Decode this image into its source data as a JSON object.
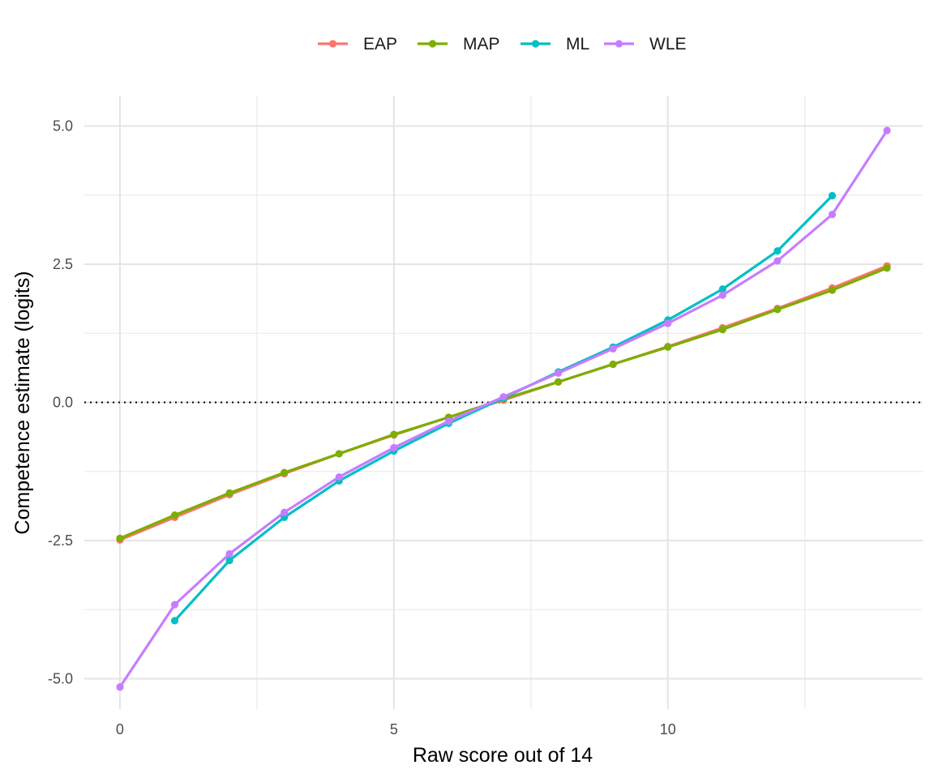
{
  "chart_data": {
    "type": "line",
    "title": "",
    "xlabel": "Raw score out of 14",
    "ylabel": "Competence estimate (logits)",
    "xlim": [
      -0.65,
      14.65
    ],
    "ylim": [
      -5.55,
      5.55
    ],
    "xticks": [
      0,
      5,
      10
    ],
    "xtick_labels": [
      "0",
      "5",
      "10"
    ],
    "yticks": [
      -5,
      -2.5,
      0,
      2.5,
      5
    ],
    "ytick_labels": [
      "-5.0",
      "-2.5",
      "0.0",
      "2.5",
      "5.0"
    ],
    "grid": true,
    "legend_position": "top",
    "reference_line": {
      "y": 0,
      "style": "dotted"
    },
    "series": [
      {
        "name": "EAP",
        "color": "#F8766D",
        "x": [
          0,
          1,
          2,
          3,
          4,
          5,
          6,
          7,
          8,
          9,
          10,
          11,
          12,
          13,
          14
        ],
        "y": [
          -2.49,
          -2.08,
          -1.67,
          -1.29,
          -0.93,
          -0.59,
          -0.27,
          0.04,
          0.37,
          0.69,
          1.01,
          1.35,
          1.7,
          2.07,
          2.47
        ]
      },
      {
        "name": "MAP",
        "color": "#7CAE00",
        "x": [
          0,
          1,
          2,
          3,
          4,
          5,
          6,
          7,
          8,
          9,
          10,
          11,
          12,
          13,
          14
        ],
        "y": [
          -2.46,
          -2.04,
          -1.64,
          -1.27,
          -0.93,
          -0.58,
          -0.27,
          0.06,
          0.37,
          0.69,
          1.0,
          1.32,
          1.68,
          2.03,
          2.43
        ]
      },
      {
        "name": "ML",
        "color": "#00BFC4",
        "x": [
          1,
          2,
          3,
          4,
          5,
          6,
          7,
          8,
          9,
          10,
          11,
          12,
          13
        ],
        "y": [
          -3.95,
          -2.86,
          -2.08,
          -1.42,
          -0.88,
          -0.38,
          0.08,
          0.55,
          1.0,
          1.49,
          2.05,
          2.74,
          3.74
        ]
      },
      {
        "name": "WLE",
        "color": "#C77CFF",
        "x": [
          0,
          1,
          2,
          3,
          4,
          5,
          6,
          7,
          8,
          9,
          10,
          11,
          12,
          13,
          14
        ],
        "y": [
          -5.15,
          -3.66,
          -2.74,
          -1.99,
          -1.35,
          -0.82,
          -0.34,
          0.1,
          0.53,
          0.97,
          1.43,
          1.94,
          2.56,
          3.4,
          4.92
        ]
      }
    ]
  }
}
